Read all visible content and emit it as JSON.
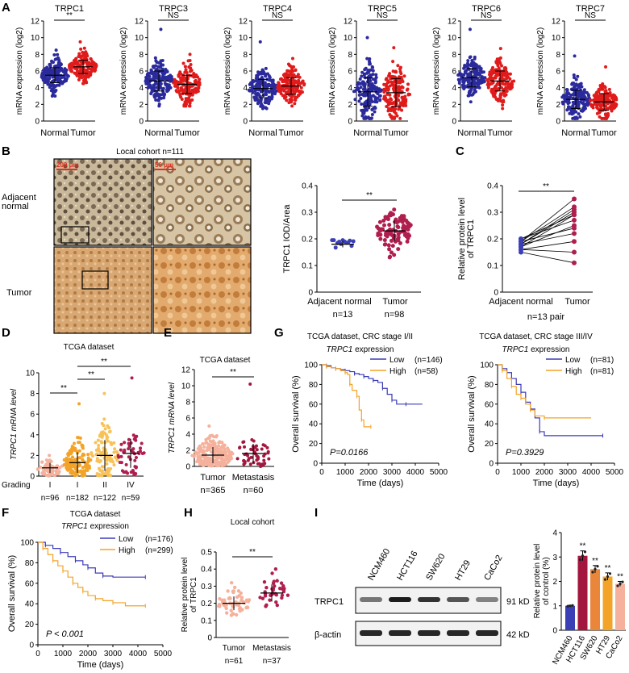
{
  "colors": {
    "normal": "#2b2a9c",
    "tumor": "#e01b1b",
    "low": "#3b3bb8",
    "high": "#f3a327",
    "adjPoint": "#3b3fb5",
    "tumPoint": "#b01e4e",
    "grade1": "#f5b19c",
    "grade2": "#f3a327",
    "grade3": "#f8c259",
    "grade4": "#b01e4e",
    "tumorE": "#f5b19c",
    "metE": "#a3173e",
    "tumorH": "#f5b19c",
    "metH": "#b01e4e",
    "bars": [
      "#3b3fb5",
      "#a3173e",
      "#e9863a",
      "#f3a327",
      "#f5b19c"
    ]
  },
  "panelA": {
    "letter": "A",
    "ylabel": "mRNA expression (log2)",
    "yticks": [
      0,
      2,
      4,
      6,
      8,
      10,
      12
    ],
    "xlabels": [
      "Normal",
      "Tumor"
    ],
    "charts": [
      {
        "title": "TRPC1",
        "sig": "**",
        "normal": {
          "mean": 5.5,
          "sd": 0.9,
          "min": 3.0,
          "max": 8.5
        },
        "tumor": {
          "mean": 6.5,
          "sd": 0.8,
          "min": 4.5,
          "max": 9.5
        }
      },
      {
        "title": "TRPC3",
        "sig": "NS",
        "normal": {
          "mean": 4.8,
          "sd": 1.2,
          "min": 1.8,
          "max": 11.0
        },
        "tumor": {
          "mean": 4.4,
          "sd": 1.1,
          "min": 1.8,
          "max": 8.0
        }
      },
      {
        "title": "TRPC4",
        "sig": "NS",
        "normal": {
          "mean": 3.9,
          "sd": 1.1,
          "min": 1.5,
          "max": 9.5
        },
        "tumor": {
          "mean": 4.2,
          "sd": 1.0,
          "min": 1.8,
          "max": 7.5
        }
      },
      {
        "title": "TRPC5",
        "sig": "NS",
        "normal": {
          "mean": 3.5,
          "sd": 1.7,
          "min": 0.3,
          "max": 10.0
        },
        "tumor": {
          "mean": 3.4,
          "sd": 1.7,
          "min": 0.3,
          "max": 8.8
        }
      },
      {
        "title": "TRPC6",
        "sig": "NS",
        "normal": {
          "mean": 5.2,
          "sd": 1.1,
          "min": 2.3,
          "max": 11.0
        },
        "tumor": {
          "mean": 4.8,
          "sd": 1.2,
          "min": 1.5,
          "max": 8.7
        }
      },
      {
        "title": "TRPC7",
        "sig": "NS",
        "normal": {
          "mean": 2.6,
          "sd": 1.1,
          "min": 0.3,
          "max": 7.8
        },
        "tumor": {
          "mean": 2.3,
          "sd": 1.0,
          "min": 0.3,
          "max": 6.5
        }
      }
    ]
  },
  "panelB": {
    "letter": "B",
    "cohort": "Local cohort n=111",
    "rows": [
      "Adjacent\nnormal",
      "Tumor"
    ],
    "scale1": "200 μm",
    "scale2": "50 μm",
    "chart_data": {
      "type": "scatter",
      "ylabel": "TRPC1 IOD/Area",
      "ylim": [
        0,
        0.4
      ],
      "yticks": [
        0,
        0.1,
        0.2,
        0.3,
        0.4
      ],
      "categories": [
        "Adjacent normal",
        "Tumor"
      ],
      "n": [
        "n=13",
        "n=98"
      ],
      "means": [
        0.18,
        0.23
      ],
      "sd": [
        0.012,
        0.04
      ],
      "ranges": [
        [
          0.155,
          0.195
        ],
        [
          0.13,
          0.31
        ]
      ],
      "sig": "**"
    }
  },
  "panelC": {
    "letter": "C",
    "chart_data": {
      "type": "line",
      "ylabel": "Relative protein level\nof TRPC1",
      "ylim": [
        0,
        0.4
      ],
      "yticks": [
        0,
        0.1,
        0.2,
        0.3,
        0.4
      ],
      "categories": [
        "Adjacent normal",
        "Tumor"
      ],
      "footer": "n=13 pair",
      "sig": "**",
      "pairs": [
        [
          0.15,
          0.11
        ],
        [
          0.16,
          0.15
        ],
        [
          0.16,
          0.19
        ],
        [
          0.17,
          0.25
        ],
        [
          0.17,
          0.29
        ],
        [
          0.18,
          0.22
        ],
        [
          0.18,
          0.3
        ],
        [
          0.18,
          0.31
        ],
        [
          0.19,
          0.24
        ],
        [
          0.19,
          0.32
        ],
        [
          0.19,
          0.35
        ],
        [
          0.2,
          0.27
        ],
        [
          0.2,
          0.29
        ]
      ]
    }
  },
  "panelD": {
    "letter": "D",
    "chart_data": {
      "type": "scatter",
      "title": "TCGA dataset",
      "ylabel": "TRPC1 mRNA level",
      "ylim": [
        0,
        10
      ],
      "yticks": [
        0,
        2,
        4,
        6,
        8,
        10
      ],
      "grading": "Grading",
      "categories": [
        "I",
        "I",
        "II",
        "IV"
      ],
      "n": [
        "n=96",
        "n=182",
        "n=122",
        "n=59"
      ],
      "means": [
        0.8,
        1.3,
        2.0,
        2.2
      ],
      "sd": [
        0.5,
        1.0,
        1.5,
        1.4
      ],
      "max": [
        2.0,
        7.0,
        8.0,
        9.5
      ],
      "sig": [
        "**",
        "**",
        "**"
      ]
    }
  },
  "panelE": {
    "letter": "E",
    "chart_data": {
      "type": "scatter",
      "title": "TCGA dataset",
      "ylabel": "TRPC1 mRNA level",
      "ylim": [
        0,
        12
      ],
      "yticks": [
        0,
        2,
        4,
        6,
        8,
        10,
        12
      ],
      "categories": [
        "Tumor",
        "Metastasis"
      ],
      "n": [
        "n=365",
        "n=60"
      ],
      "means": [
        1.4,
        1.6
      ],
      "sd": [
        1.0,
        1.2
      ],
      "max": [
        5.0,
        10.2
      ],
      "sig": "**"
    }
  },
  "panelG": {
    "letter": "G",
    "charts": [
      {
        "type": "line",
        "title": "TCGA dataset, CRC stage I/II",
        "subtitle_em": "TRPC1",
        "subtitle": " expression",
        "legend": [
          {
            "name": "Low",
            "n": "(n=146)"
          },
          {
            "name": "High",
            "n": "(n=58)"
          }
        ],
        "pvalue": "P=0.0166",
        "ylabel": "Overall survival (%)",
        "xlabel": "Time (days)",
        "xlim": [
          0,
          5000
        ],
        "ylim": [
          0,
          100
        ],
        "xticks": [
          0,
          1000,
          2000,
          3000,
          4000,
          5000
        ],
        "yticks": [
          0,
          20,
          40,
          60,
          80,
          100
        ],
        "low": [
          [
            0,
            100
          ],
          [
            200,
            99
          ],
          [
            400,
            97
          ],
          [
            600,
            96
          ],
          [
            800,
            95
          ],
          [
            1000,
            94
          ],
          [
            1200,
            93
          ],
          [
            1400,
            91
          ],
          [
            1600,
            90
          ],
          [
            1800,
            88
          ],
          [
            2000,
            86
          ],
          [
            2200,
            84
          ],
          [
            2400,
            82
          ],
          [
            2600,
            76
          ],
          [
            2800,
            70
          ],
          [
            3000,
            64
          ],
          [
            3200,
            60
          ],
          [
            3600,
            60
          ],
          [
            4300,
            60
          ]
        ],
        "high": [
          [
            0,
            100
          ],
          [
            200,
            98
          ],
          [
            400,
            97
          ],
          [
            600,
            96
          ],
          [
            800,
            94
          ],
          [
            1000,
            92
          ],
          [
            1100,
            90
          ],
          [
            1200,
            80
          ],
          [
            1300,
            74
          ],
          [
            1500,
            68
          ],
          [
            1600,
            54
          ],
          [
            1700,
            44
          ],
          [
            1800,
            37
          ],
          [
            2100,
            37
          ]
        ]
      },
      {
        "type": "line",
        "title": "TCGA dataset, CRC stage III/IV",
        "subtitle_em": "TRPC1",
        "subtitle": " expression",
        "legend": [
          {
            "name": "Low",
            "n": "(n=81)"
          },
          {
            "name": "High",
            "n": "(n=81)"
          }
        ],
        "pvalue": "P=0.3929",
        "ylabel": "Overall survival (%)",
        "xlabel": "Time (days)",
        "xlim": [
          0,
          5000
        ],
        "ylim": [
          0,
          100
        ],
        "xticks": [
          0,
          1000,
          2000,
          3000,
          4000,
          5000
        ],
        "yticks": [
          0,
          20,
          40,
          60,
          80,
          100
        ],
        "low": [
          [
            0,
            100
          ],
          [
            200,
            96
          ],
          [
            400,
            92
          ],
          [
            600,
            86
          ],
          [
            800,
            80
          ],
          [
            1000,
            72
          ],
          [
            1200,
            62
          ],
          [
            1400,
            55
          ],
          [
            1600,
            46
          ],
          [
            1800,
            32
          ],
          [
            2000,
            28
          ],
          [
            4500,
            28
          ]
        ],
        "high": [
          [
            0,
            100
          ],
          [
            200,
            94
          ],
          [
            400,
            86
          ],
          [
            600,
            78
          ],
          [
            800,
            70
          ],
          [
            1000,
            66
          ],
          [
            1200,
            60
          ],
          [
            1400,
            54
          ],
          [
            1600,
            48
          ],
          [
            2000,
            46
          ],
          [
            4000,
            46
          ]
        ]
      }
    ]
  },
  "panelF": {
    "letter": "F",
    "chart_data": {
      "type": "line",
      "title": "TCGA dataset",
      "subtitle_em": "TRPC1",
      "subtitle": " expression",
      "legend": [
        {
          "name": "Low",
          "n": "(n=176)"
        },
        {
          "name": "High",
          "n": "(n=299)"
        }
      ],
      "pvalue": "P < 0.001",
      "ylabel": "Overall survival (%)",
      "xlabel": "Time (days)",
      "xlim": [
        0,
        5000
      ],
      "ylim": [
        0,
        100
      ],
      "xticks": [
        0,
        1000,
        2000,
        3000,
        4000,
        5000
      ],
      "yticks": [
        0,
        20,
        40,
        60,
        80,
        100
      ],
      "low": [
        [
          0,
          100
        ],
        [
          300,
          97
        ],
        [
          600,
          94
        ],
        [
          900,
          90
        ],
        [
          1200,
          86
        ],
        [
          1500,
          82
        ],
        [
          1800,
          78
        ],
        [
          2000,
          75
        ],
        [
          2300,
          70
        ],
        [
          2600,
          67
        ],
        [
          3000,
          66
        ],
        [
          4300,
          66
        ]
      ],
      "high": [
        [
          0,
          100
        ],
        [
          200,
          94
        ],
        [
          400,
          88
        ],
        [
          600,
          82
        ],
        [
          800,
          77
        ],
        [
          1000,
          72
        ],
        [
          1200,
          66
        ],
        [
          1400,
          60
        ],
        [
          1600,
          56
        ],
        [
          1800,
          52
        ],
        [
          2000,
          48
        ],
        [
          2300,
          45
        ],
        [
          2600,
          43
        ],
        [
          3000,
          41
        ],
        [
          3500,
          38
        ],
        [
          4300,
          38
        ]
      ]
    }
  },
  "panelH": {
    "letter": "H",
    "chart_data": {
      "type": "scatter",
      "title": "Local cohort",
      "ylabel": "Relative protein level\nof TRPC1",
      "ylim": [
        0,
        0.5
      ],
      "yticks": [
        0,
        0.1,
        0.2,
        0.3,
        0.4,
        0.5
      ],
      "categories": [
        "Tumor",
        "Metastasis"
      ],
      "n": [
        "n=61",
        "n=37"
      ],
      "means": [
        0.2,
        0.26
      ],
      "sd": [
        0.04,
        0.05
      ],
      "ranges": [
        [
          0.1,
          0.32
        ],
        [
          0.15,
          0.4
        ]
      ],
      "sig": "**"
    }
  },
  "panelI": {
    "letter": "I",
    "cells": [
      "NCM460",
      "HCT116",
      "SW620",
      "HT29",
      "CaCo2"
    ],
    "blot_rows": [
      {
        "name": "TRPC1",
        "kd": "91 kD"
      },
      {
        "name": "β-actin",
        "kd": "42 kD"
      }
    ],
    "trpc1_intensity": [
      0.55,
      0.95,
      0.85,
      0.7,
      0.5
    ],
    "chart_data": {
      "type": "bar",
      "ylabel": "Relative protein level\nof control (%)",
      "ylim": [
        0,
        4
      ],
      "yticks": [
        0,
        1,
        2,
        3,
        4
      ],
      "categories": [
        "NCM460",
        "HCT116",
        "SW620",
        "HT29",
        "CaCo2"
      ],
      "values": [
        1.0,
        3.05,
        2.5,
        2.2,
        1.9
      ],
      "errors": [
        0.02,
        0.2,
        0.15,
        0.15,
        0.1
      ],
      "labels": [
        "",
        "**",
        "**",
        "**",
        "**"
      ]
    }
  }
}
